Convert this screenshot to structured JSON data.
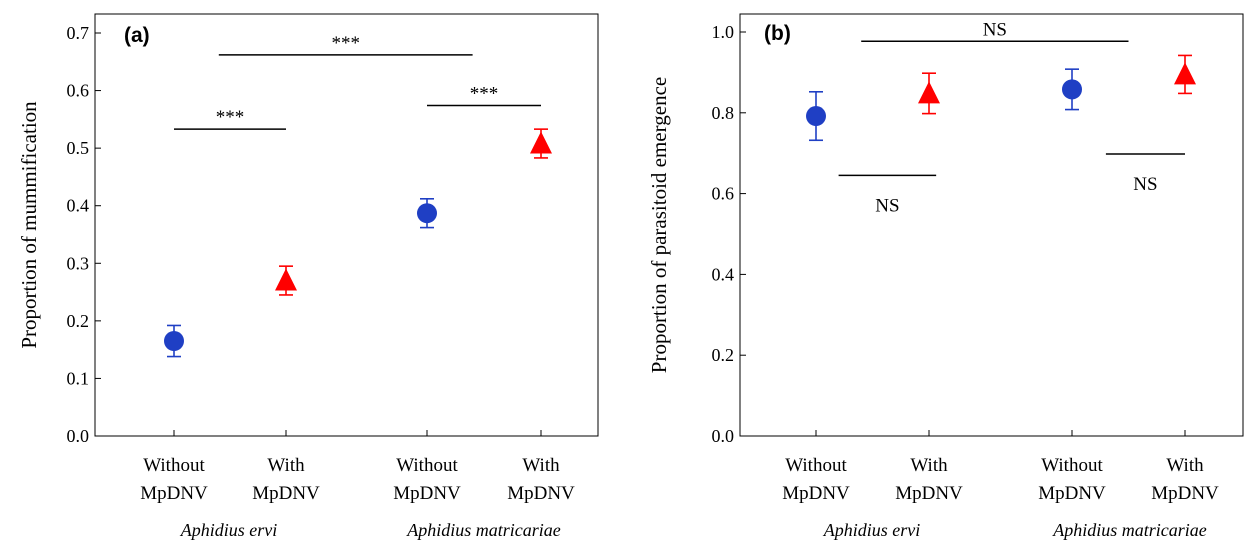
{
  "chart_data": [
    {
      "type": "scatter",
      "panel_label": "(a)",
      "ylabel": "Proportion of mummification",
      "ylim": [
        0.0,
        0.7
      ],
      "yticks": [
        "0.0",
        "0.1",
        "0.2",
        "0.3",
        "0.4",
        "0.5",
        "0.6",
        "0.7"
      ],
      "yticks_values": [
        0.0,
        0.1,
        0.2,
        0.3,
        0.4,
        0.5,
        0.6,
        0.7
      ],
      "categories": [
        {
          "line1": "Without",
          "line2": "MpDNV"
        },
        {
          "line1": "With",
          "line2": "MpDNV"
        },
        {
          "line1": "Without",
          "line2": "MpDNV"
        },
        {
          "line1": "With",
          "line2": "MpDNV"
        }
      ],
      "groups": [
        "Aphidius ervi",
        "Aphidius matricariae"
      ],
      "points": [
        {
          "value": 0.165,
          "err": 0.027,
          "marker": "circle",
          "color": "#1f3fc4"
        },
        {
          "value": 0.27,
          "err": 0.025,
          "marker": "triangle",
          "color": "#ff0000"
        },
        {
          "value": 0.387,
          "err": 0.025,
          "marker": "circle",
          "color": "#1f3fc4"
        },
        {
          "value": 0.508,
          "err": 0.025,
          "marker": "triangle",
          "color": "#ff0000"
        }
      ],
      "annotations": [
        {
          "text": "***",
          "value": 0.533,
          "from": 0,
          "to": 1,
          "label_pos": "above"
        },
        {
          "text": "***",
          "value": 0.574,
          "from": 2,
          "to": 3,
          "label_pos": "above"
        },
        {
          "text": "***",
          "value": 0.662,
          "from": 0.4,
          "to": 2.4,
          "label_pos": "above"
        }
      ]
    },
    {
      "type": "scatter",
      "panel_label": "(b)",
      "ylabel": "Proportion of parasitoid emergence",
      "ylim": [
        0.0,
        1.05
      ],
      "yticks": [
        "0.0",
        "0.2",
        "0.4",
        "0.6",
        "0.8",
        "1.0"
      ],
      "yticks_values": [
        0.0,
        0.2,
        0.4,
        0.6,
        0.8,
        1.0
      ],
      "categories": [
        {
          "line1": "Without",
          "line2": "MpDNV"
        },
        {
          "line1": "With",
          "line2": "MpDNV"
        },
        {
          "line1": "Without",
          "line2": "MpDNV"
        },
        {
          "line1": "With",
          "line2": "MpDNV"
        }
      ],
      "groups": [
        "Aphidius ervi",
        "Aphidius matricariae"
      ],
      "points": [
        {
          "value": 0.792,
          "err": 0.06,
          "marker": "circle",
          "color": "#1f3fc4"
        },
        {
          "value": 0.848,
          "err": 0.05,
          "marker": "triangle",
          "color": "#ff0000"
        },
        {
          "value": 0.858,
          "err": 0.05,
          "marker": "circle",
          "color": "#1f3fc4"
        },
        {
          "value": 0.895,
          "err": 0.047,
          "marker": "triangle",
          "color": "#ff0000"
        }
      ],
      "annotations": [
        {
          "text": "NS",
          "value": 0.645,
          "from": 0.2,
          "to": 1.05,
          "label_pos": "below"
        },
        {
          "text": "NS",
          "value": 0.698,
          "from": 2.3,
          "to": 3.2,
          "label_pos": "below"
        },
        {
          "text": "NS",
          "value": 0.977,
          "from": 0.4,
          "to": 2.5,
          "label_pos": "above"
        }
      ]
    }
  ]
}
